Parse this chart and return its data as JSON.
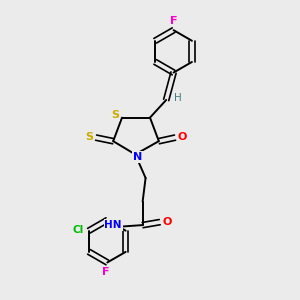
{
  "background_color": "#ebebeb",
  "atom_colors": {
    "C": "#000000",
    "H": "#408080",
    "N": "#0000ff",
    "O": "#ff0000",
    "S": "#ccaa00",
    "F": "#ff00cc",
    "Cl": "#00bb00"
  },
  "figsize": [
    3.0,
    3.0
  ],
  "dpi": 100,
  "xlim": [
    0,
    10
  ],
  "ylim": [
    0,
    10
  ]
}
